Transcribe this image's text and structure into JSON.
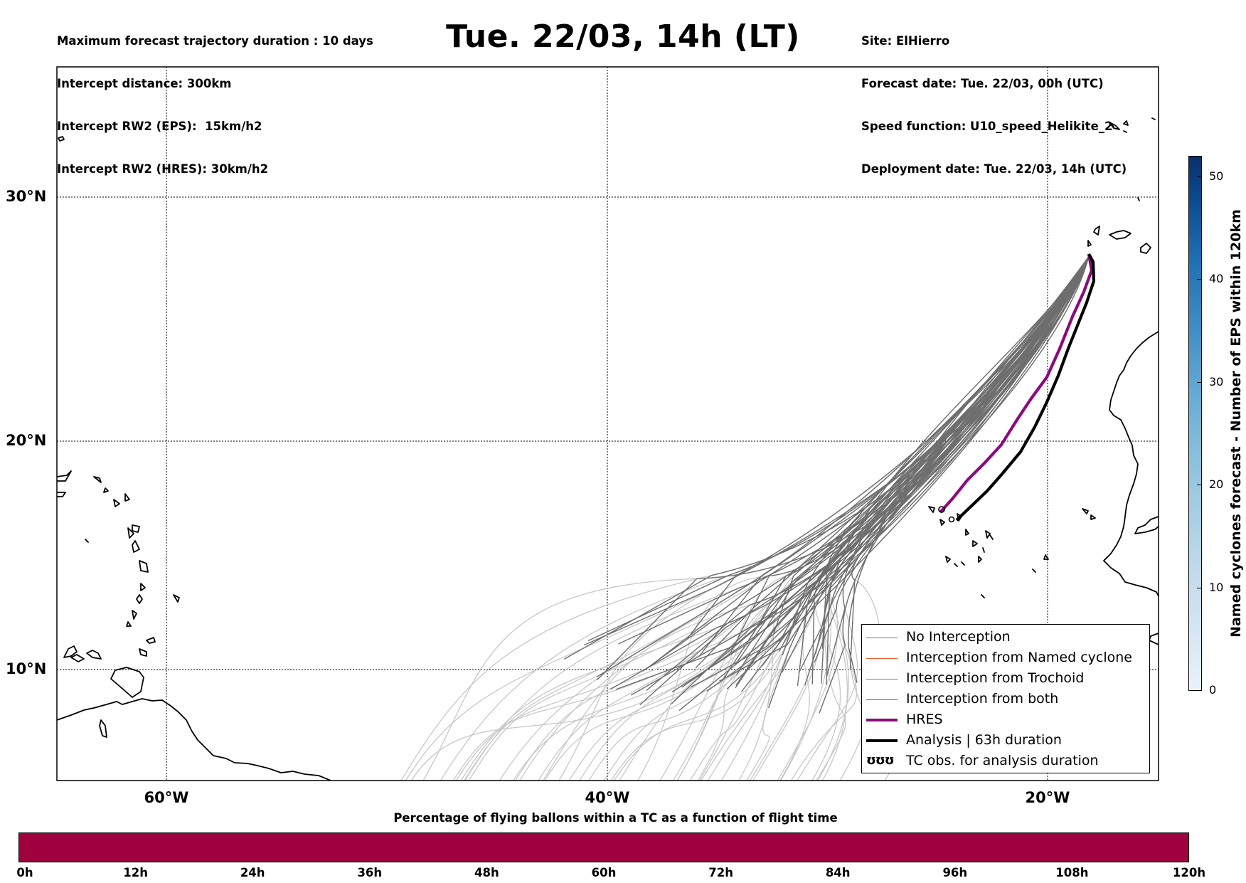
{
  "header": {
    "left_lines": [
      "Maximum forecast trajectory duration : 10 days",
      "Intercept distance: 300km",
      "Intercept RW2 (EPS):  15km/h2",
      "Intercept RW2 (HRES): 30km/h2"
    ],
    "title": "Tue. 22/03, 14h (LT)",
    "right_lines": [
      "Site: ElHierro",
      "Forecast date: Tue. 22/03, 00h (UTC)",
      "Speed function: U10_speed_Helikite_2",
      "Deployment date: Tue. 22/03, 14h (UTC)"
    ]
  },
  "map": {
    "lat_labels": [
      "30°N",
      "20°N",
      "10°N"
    ],
    "lon_labels": [
      "60°W",
      "40°W",
      "20°W"
    ]
  },
  "legend": {
    "items": [
      {
        "label": "No Interception",
        "color": "#777777"
      },
      {
        "label": "Interception from Named cyclone",
        "color": "#e8602c"
      },
      {
        "label": "Interception from Trochoid",
        "color": "#8a8a2a"
      },
      {
        "label": "Interception from both",
        "color": "#3c8f3c"
      },
      {
        "label": "HRES",
        "color": "#8b0a7e"
      },
      {
        "label": "Analysis | 63h duration",
        "color": "#000000"
      },
      {
        "label": "TC obs. for analysis duration",
        "marker": "ʊʊʊ"
      }
    ]
  },
  "colorbar_right": {
    "label": "Named cyclones forecast - Number of EPS within 120km",
    "ticks": [
      "0",
      "10",
      "20",
      "30",
      "40",
      "50"
    ]
  },
  "colorbar_bottom": {
    "title": "Percentage of flying ballons within a TC as a function of flight time",
    "ticks": [
      "0h",
      "12h",
      "24h",
      "36h",
      "48h",
      "60h",
      "72h",
      "84h",
      "96h",
      "108h",
      "120h"
    ],
    "color": "#a0003e"
  }
}
